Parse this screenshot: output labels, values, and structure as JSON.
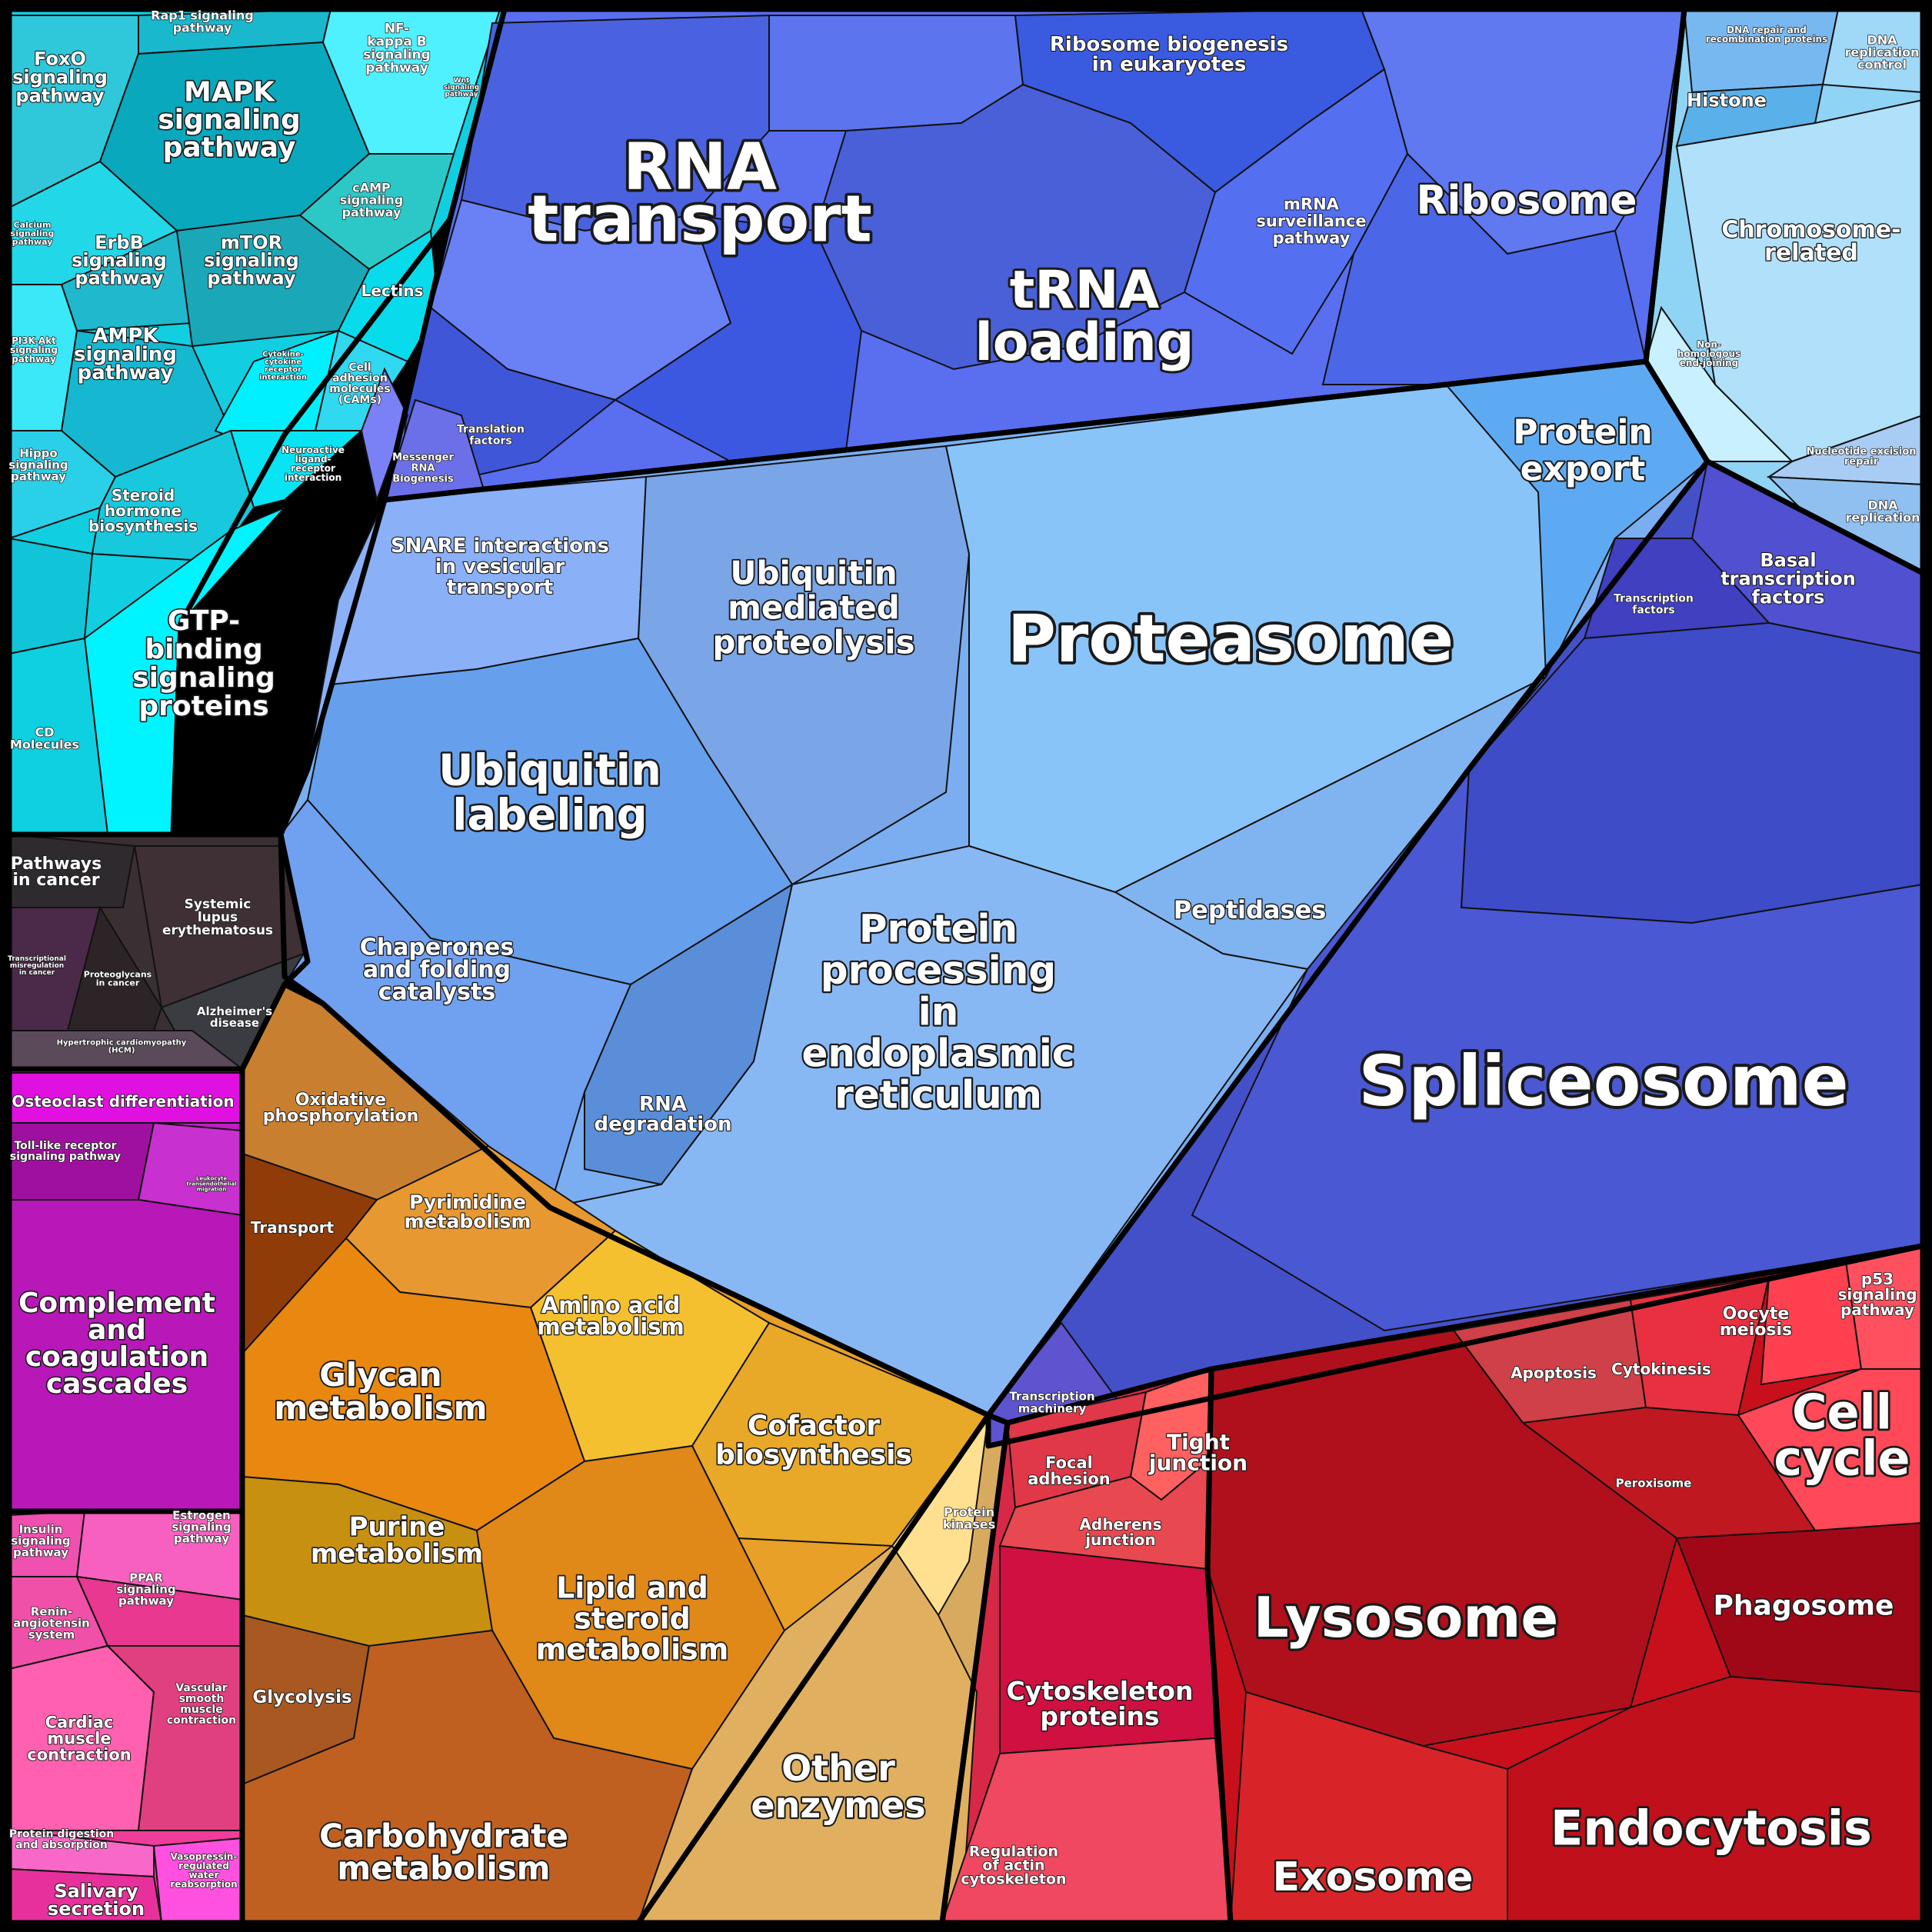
{
  "regions": [
    {
      "id": "signaling",
      "color": "#11cfe0"
    },
    {
      "id": "rna",
      "color": "#5a6ef0"
    },
    {
      "id": "dna",
      "color": "#8fd3f5"
    },
    {
      "id": "protein",
      "color": "#7aaef0"
    },
    {
      "id": "spliceosome",
      "color": "#4450c8"
    },
    {
      "id": "disease",
      "color": "#3a3034"
    },
    {
      "id": "immune",
      "color": "#c01ec0"
    },
    {
      "id": "endocrine",
      "color": "#f03c9a"
    },
    {
      "id": "metabolism",
      "color": "#e8a028"
    },
    {
      "id": "other-enzymes",
      "color": "#d8aa60"
    },
    {
      "id": "cytoskeleton",
      "color": "#d82848"
    },
    {
      "id": "vesicle",
      "color": "#c8101c"
    }
  ],
  "labels": {
    "rna_transport": "RNA\ntransport",
    "trna_loading": "tRNA\nloading",
    "ribosome": "Ribosome",
    "ribosome_biogenesis": "Ribosome biogenesis\nin eukaryotes",
    "mrna_surveillance": "mRNA\nsurveillance\npathway",
    "translation_factors": "Translation\nfactors",
    "messenger_rna_biogenesis": "Messenger\nRNA\nBiogenesis",
    "histone": "Histone",
    "dna_repair_recombination": "DNA repair and\nrecombination proteins",
    "dna_replication_control": "DNA\nreplication\ncontrol",
    "chromosome_related": "Chromosome-\nrelated",
    "nonhomologous_end_joining": "Non-\nhomologous\nend-joining",
    "nucleotide_excision_repair": "Nucleotide excision\nrepair",
    "dna_replication": "DNA\nreplication",
    "proteasome": "Proteasome",
    "protein_export": "Protein\nexport",
    "snare": "SNARE interactions\nin vesicular\ntransport",
    "ubiquitin_mediated": "Ubiquitin\nmediated\nproteolysis",
    "ubiquitin_labeling": "Ubiquitin\nlabeling",
    "peptidases": "Peptidases",
    "chaperones": "Chaperones\nand folding\ncatalysts",
    "rna_degradation": "RNA\ndegradation",
    "protein_processing_er": "Protein\nprocessing\nin\nendoplasmic\nreticulum",
    "transcription_factors": "Transcription\nfactors",
    "basal_transcription_factors": "Basal\ntranscription\nfactors",
    "spliceosome": "Spliceosome",
    "transcription_machinery": "Transcription\nmachinery",
    "foxo": "FoxO\nsignaling\npathway",
    "rap1": "Rap1 signaling\npathway",
    "nfkb": "NF-\nkappa B\nsignaling\npathway",
    "wnt": "Wnt\nsignaling\npathway",
    "mapk": "MAPK\nsignaling\npathway",
    "camp": "cAMP\nsignaling\npathway",
    "calcium": "Calcium\nsignaling\npathway",
    "erbb": "ErbB\nsignaling\npathway",
    "mtor": "mTOR\nsignaling\npathway",
    "lectins": "Lectins",
    "pi3k": "PI3K-Akt\nsignaling\npathway",
    "ampk": "AMPK\nsignaling\npathway",
    "cytokine": "Cytokine-\ncytokine\nreceptor\ninteraction",
    "cams": "Cell\nadhesion\nmolecules\n(CAMs)",
    "hippo": "Hippo\nsignaling\npathway",
    "neuroactive": "Neuroactive\nligand-\nreceptor\ninteraction",
    "steroid_hormone": "Steroid\nhormone\nbiosynthesis",
    "gtp_binding": "GTP-\nbinding\nsignaling\nproteins",
    "cd_molecules": "CD\nMolecules",
    "pathways_in_cancer": "Pathways\nin cancer",
    "lupus": "Systemic\nlupus\nerythematosus",
    "transcriptional_misregulation": "Transcriptional\nmisregulation\nin cancer",
    "proteoglycans": "Proteoglycans\nin cancer",
    "alzheimers": "Alzheimer's\ndisease",
    "hcm": "Hypertrophic cardiomyopathy\n(HCM)",
    "osteoclast": "Osteoclast differentiation",
    "toll_like": "Toll-like receptor\nsignaling pathway",
    "leukocyte": "Leukocyte\ntransendothelial\nmigration",
    "complement": "Complement\nand\ncoagulation\ncascades",
    "insulin": "Insulin\nsignaling\npathway",
    "estrogen": "Estrogen\nsignaling\npathway",
    "ppar": "PPAR\nsignaling\npathway",
    "renin": "Renin-\nangiotensin\nsystem",
    "cardiac": "Cardiac\nmuscle\ncontraction",
    "vascular": "Vascular\nsmooth\nmuscle\ncontraction",
    "protein_digestion": "Protein digestion\nand absorption",
    "salivary": "Salivary\nsecretion",
    "vasopressin": "Vasopressin-\nregulated\nwater\nreabsorption",
    "oxidative_phosphorylation": "Oxidative\nphosphorylation",
    "transport": "Transport",
    "pyrimidine": "Pyrimidine\nmetabolism",
    "amino_acid": "Amino acid\nmetabolism",
    "glycan": "Glycan\nmetabolism",
    "cofactor": "Cofactor\nbiosynthesis",
    "purine": "Purine\nmetabolism",
    "lipid_steroid": "Lipid and\nsteroid\nmetabolism",
    "glycolysis": "Glycolysis",
    "carbohydrate": "Carbohydrate\nmetabolism",
    "protein_kinases": "Protein\nkinases",
    "other_enzymes": "Other\nenzymes",
    "focal_adhesion": "Focal\nadhesion",
    "tight_junction": "Tight\njunction",
    "adherens_junction": "Adherens\njunction",
    "cytoskeleton_proteins": "Cytoskeleton\nproteins",
    "regulation_actin": "Regulation\nof actin\ncytoskeleton",
    "apoptosis": "Apoptosis",
    "cytokinesis": "Cytokinesis",
    "oocyte_meiosis": "Oocyte\nmeiosis",
    "p53": "p53\nsignaling\npathway",
    "cell_cycle": "Cell\ncycle",
    "peroxisome": "Peroxisome",
    "lysosome": "Lysosome",
    "phagosome": "Phagosome",
    "endocytosis": "Endocytosis",
    "exosome": "Exosome"
  }
}
